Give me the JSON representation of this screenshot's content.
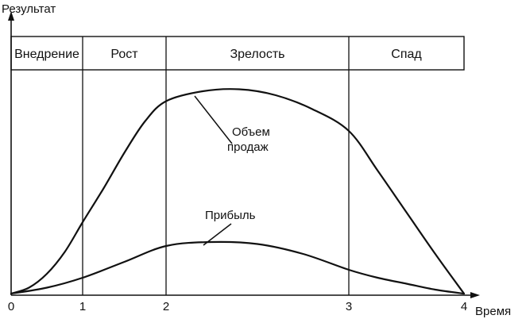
{
  "chart_data": {
    "type": "line",
    "ylabel": "Результат",
    "xlabel": "Время",
    "xlim": [
      0,
      4
    ],
    "x_ticks": [
      "0",
      "1",
      "2",
      "3",
      "4"
    ],
    "stages": [
      {
        "name": "Внедрение",
        "start": 0,
        "end": 1
      },
      {
        "name": "Рост",
        "start": 1,
        "end": 2
      },
      {
        "name": "Зрелость",
        "start": 2,
        "end": 3
      },
      {
        "name": "Спад",
        "start": 3,
        "end": 4
      }
    ],
    "series": [
      {
        "name": "Объем продаж",
        "name_lines": [
          "Объем",
          "продаж"
        ],
        "x": [
          0,
          0.25,
          0.5,
          0.75,
          1.0,
          1.25,
          1.5,
          1.75,
          2.0,
          2.2,
          2.4,
          2.6,
          2.8,
          3.0,
          3.25,
          3.5,
          3.75,
          4.0
        ],
        "y": [
          0,
          3,
          10,
          21,
          36,
          53,
          71,
          87,
          97,
          102,
          103,
          100,
          93,
          82,
          62,
          41,
          20,
          0
        ]
      },
      {
        "name": "Прибыль",
        "name_lines": [
          "Прибыль"
        ],
        "x": [
          0,
          0.5,
          1.0,
          1.5,
          2.0,
          2.25,
          2.5,
          2.75,
          3.0,
          3.25,
          3.5,
          3.75,
          4.0
        ],
        "y": [
          0,
          3,
          8,
          16,
          24,
          26,
          25,
          20,
          12,
          8,
          5,
          2,
          0
        ]
      }
    ]
  }
}
